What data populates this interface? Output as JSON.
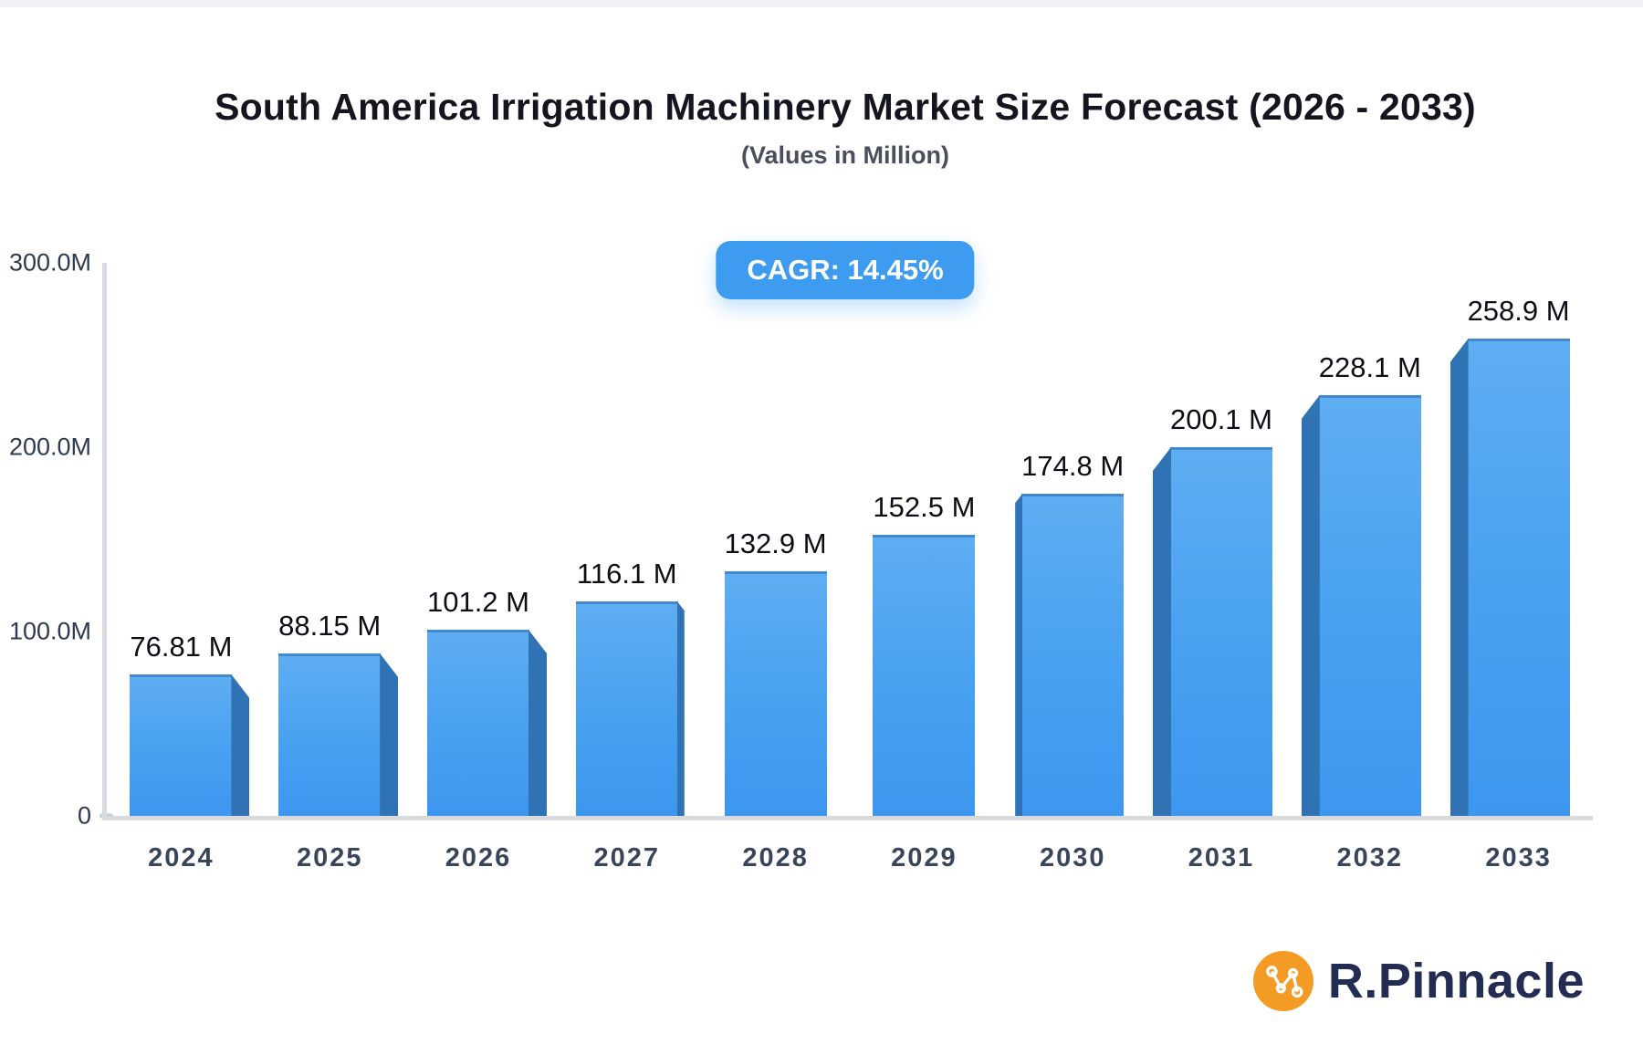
{
  "title": "South America Irrigation Machinery Market Size Forecast (2026 - 2033)",
  "subtitle": "(Values in Million)",
  "badge": {
    "label": "CAGR: 14.45%",
    "bg_color": "#3d9bf0",
    "text_color": "#ffffff"
  },
  "chart_data": {
    "type": "bar",
    "title": "South America Irrigation Machinery Market Size Forecast (2026 - 2033)",
    "subtitle": "(Values in Million)",
    "categories": [
      "2024",
      "2025",
      "2026",
      "2027",
      "2028",
      "2029",
      "2030",
      "2031",
      "2032",
      "2033"
    ],
    "values": [
      76.81,
      88.15,
      101.2,
      116.1,
      132.9,
      152.5,
      174.8,
      200.1,
      228.1,
      258.9
    ],
    "data_labels": [
      "76.81 M",
      "88.15 M",
      "101.2 M",
      "116.1 M",
      "132.9 M",
      "152.5 M",
      "174.8 M",
      "200.1 M",
      "228.1 M",
      "258.9 M"
    ],
    "unit": "Million",
    "cagr": "14.45%",
    "ylim": [
      0,
      300
    ],
    "y_ticks": [
      {
        "label": "300.0M",
        "value": 300
      },
      {
        "label": "200.0M",
        "value": 200
      },
      {
        "label": "100.0M",
        "value": 100
      },
      {
        "label": "0",
        "value": 0
      }
    ],
    "grid": false,
    "legend": false,
    "perspective_3d": true,
    "bar_style": {
      "front_top": "#5fadf2",
      "front_bottom": "#3e97ef",
      "side": "#2f73b4",
      "top_edge": "#4289cf"
    },
    "axis_color": "#d7dade",
    "xlabel": "",
    "ylabel": ""
  },
  "logo": {
    "text": "R.Pinnacle",
    "icon": "network-nodes-icon",
    "icon_color": "#f49b25",
    "text_color": "#232c52"
  }
}
